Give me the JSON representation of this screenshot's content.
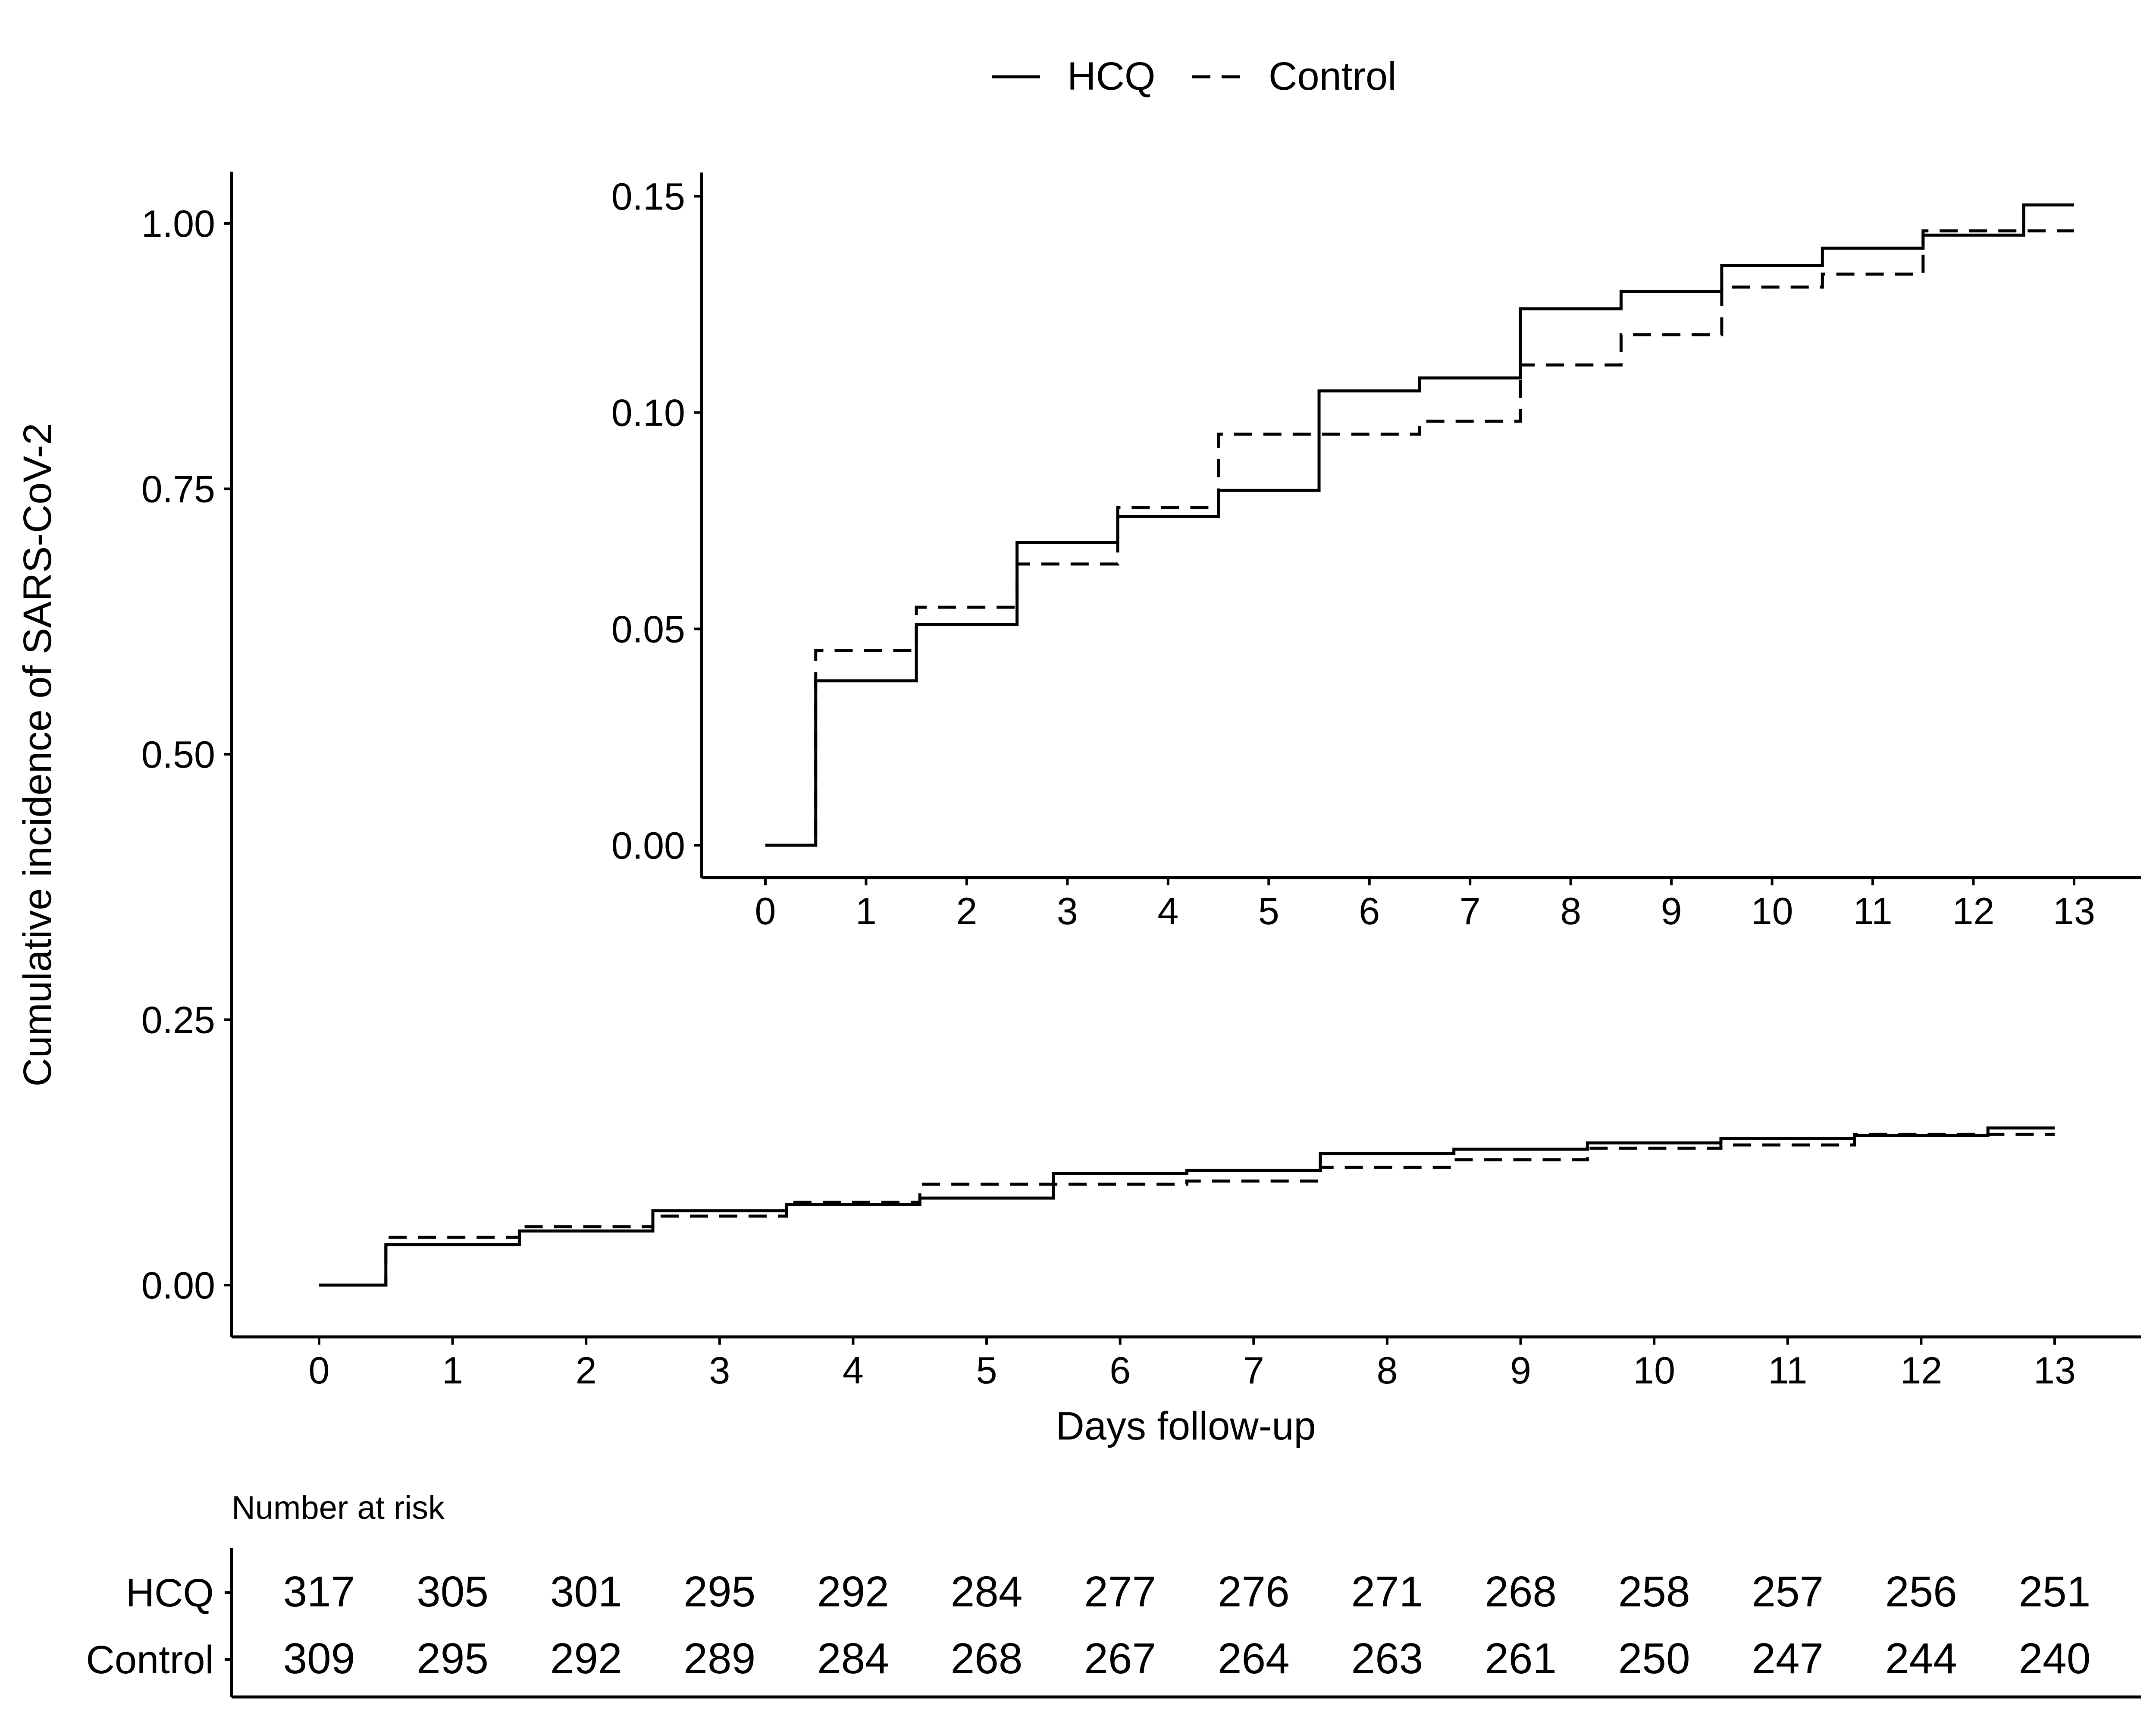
{
  "legend": {
    "position": "top-center",
    "items": [
      {
        "label": "HCQ",
        "linestyle": "solid"
      },
      {
        "label": "Control",
        "linestyle": "dashed"
      }
    ]
  },
  "chart_data": [
    {
      "id": "main",
      "type": "line",
      "step": true,
      "xlabel": "Days follow-up",
      "ylabel": "Cumulative incidence of SARS-CoV-2",
      "xlim": [
        0,
        13
      ],
      "ylim": [
        0,
        1
      ],
      "xticks": [
        "0",
        "1",
        "2",
        "3",
        "4",
        "5",
        "6",
        "7",
        "8",
        "9",
        "10",
        "11",
        "12",
        "13"
      ],
      "yticks": [
        "0.00",
        "0.25",
        "0.50",
        "0.75",
        "1.00"
      ],
      "grid": false,
      "series": [
        {
          "name": "HCQ",
          "linestyle": "solid",
          "x": [
            0,
            0.5,
            1.5,
            2.5,
            3.5,
            4.5,
            5.5,
            6.5,
            7.5,
            8.5,
            9.5,
            10.5,
            11.5,
            12.5,
            13
          ],
          "y": [
            0,
            0.038,
            0.051,
            0.07,
            0.076,
            0.082,
            0.105,
            0.108,
            0.124,
            0.128,
            0.134,
            0.138,
            0.141,
            0.148,
            0.148
          ]
        },
        {
          "name": "Control",
          "linestyle": "dashed",
          "x": [
            0,
            0.5,
            1.5,
            2.5,
            3.5,
            4.5,
            5.5,
            6.5,
            7.5,
            8.5,
            9.5,
            10.5,
            11.5,
            12.5,
            13
          ],
          "y": [
            0,
            0.045,
            0.055,
            0.065,
            0.078,
            0.095,
            0.095,
            0.098,
            0.111,
            0.118,
            0.129,
            0.132,
            0.142,
            0.142,
            0.142
          ]
        }
      ]
    },
    {
      "id": "inset",
      "type": "line",
      "step": true,
      "xlim": [
        0,
        13
      ],
      "ylim": [
        0,
        0.15
      ],
      "xticks": [
        "0",
        "1",
        "2",
        "3",
        "4",
        "5",
        "6",
        "7",
        "8",
        "9",
        "10",
        "11",
        "12",
        "13"
      ],
      "yticks": [
        "0.00",
        "0.05",
        "0.10",
        "0.15"
      ],
      "grid": false,
      "series": [
        {
          "name": "HCQ",
          "linestyle": "solid",
          "x": [
            0,
            0.5,
            1.5,
            2.5,
            3.5,
            4.5,
            5.5,
            6.5,
            7.5,
            8.5,
            9.5,
            10.5,
            11.5,
            12.5,
            13
          ],
          "y": [
            0,
            0.038,
            0.051,
            0.07,
            0.076,
            0.082,
            0.105,
            0.108,
            0.124,
            0.128,
            0.134,
            0.138,
            0.141,
            0.148,
            0.148
          ]
        },
        {
          "name": "Control",
          "linestyle": "dashed",
          "x": [
            0,
            0.5,
            1.5,
            2.5,
            3.5,
            4.5,
            5.5,
            6.5,
            7.5,
            8.5,
            9.5,
            10.5,
            11.5,
            12.5,
            13
          ],
          "y": [
            0,
            0.045,
            0.055,
            0.065,
            0.078,
            0.095,
            0.095,
            0.098,
            0.111,
            0.118,
            0.129,
            0.132,
            0.142,
            0.142,
            0.142
          ]
        }
      ]
    },
    {
      "id": "risk-table",
      "type": "table",
      "title": "Number at risk",
      "rows": [
        {
          "label": "HCQ",
          "values": [
            317,
            305,
            301,
            295,
            292,
            284,
            277,
            276,
            271,
            268,
            258,
            257,
            256,
            251
          ]
        },
        {
          "label": "Control",
          "values": [
            309,
            295,
            292,
            289,
            284,
            268,
            267,
            264,
            263,
            261,
            250,
            247,
            244,
            240
          ]
        }
      ]
    }
  ]
}
